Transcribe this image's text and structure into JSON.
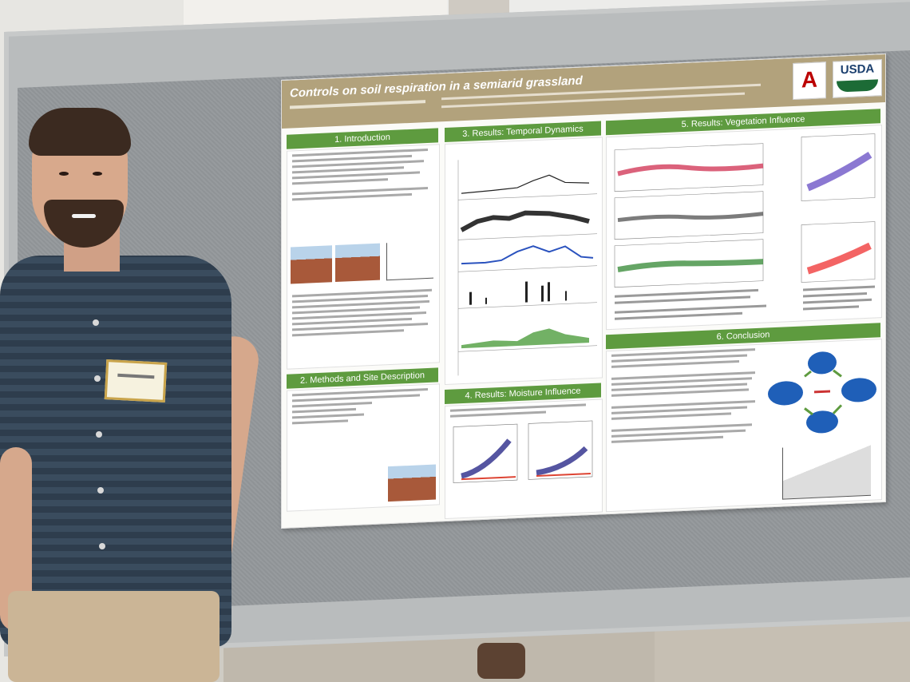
{
  "poster": {
    "title": "Controls on soil respiration in a semiarid grassland",
    "sections": {
      "s1": "1. Introduction",
      "s2": "2. Methods and Site Description",
      "s3": "3. Results: Temporal Dynamics",
      "s4": "4. Results: Moisture Influence",
      "s5": "5. Results: Vegetation Influence",
      "s6": "6. Conclusion"
    },
    "logos": {
      "ua": "A",
      "usda": "USDA"
    }
  },
  "colors": {
    "section_band": "#5e9b3f",
    "header": "#b2a27c"
  }
}
